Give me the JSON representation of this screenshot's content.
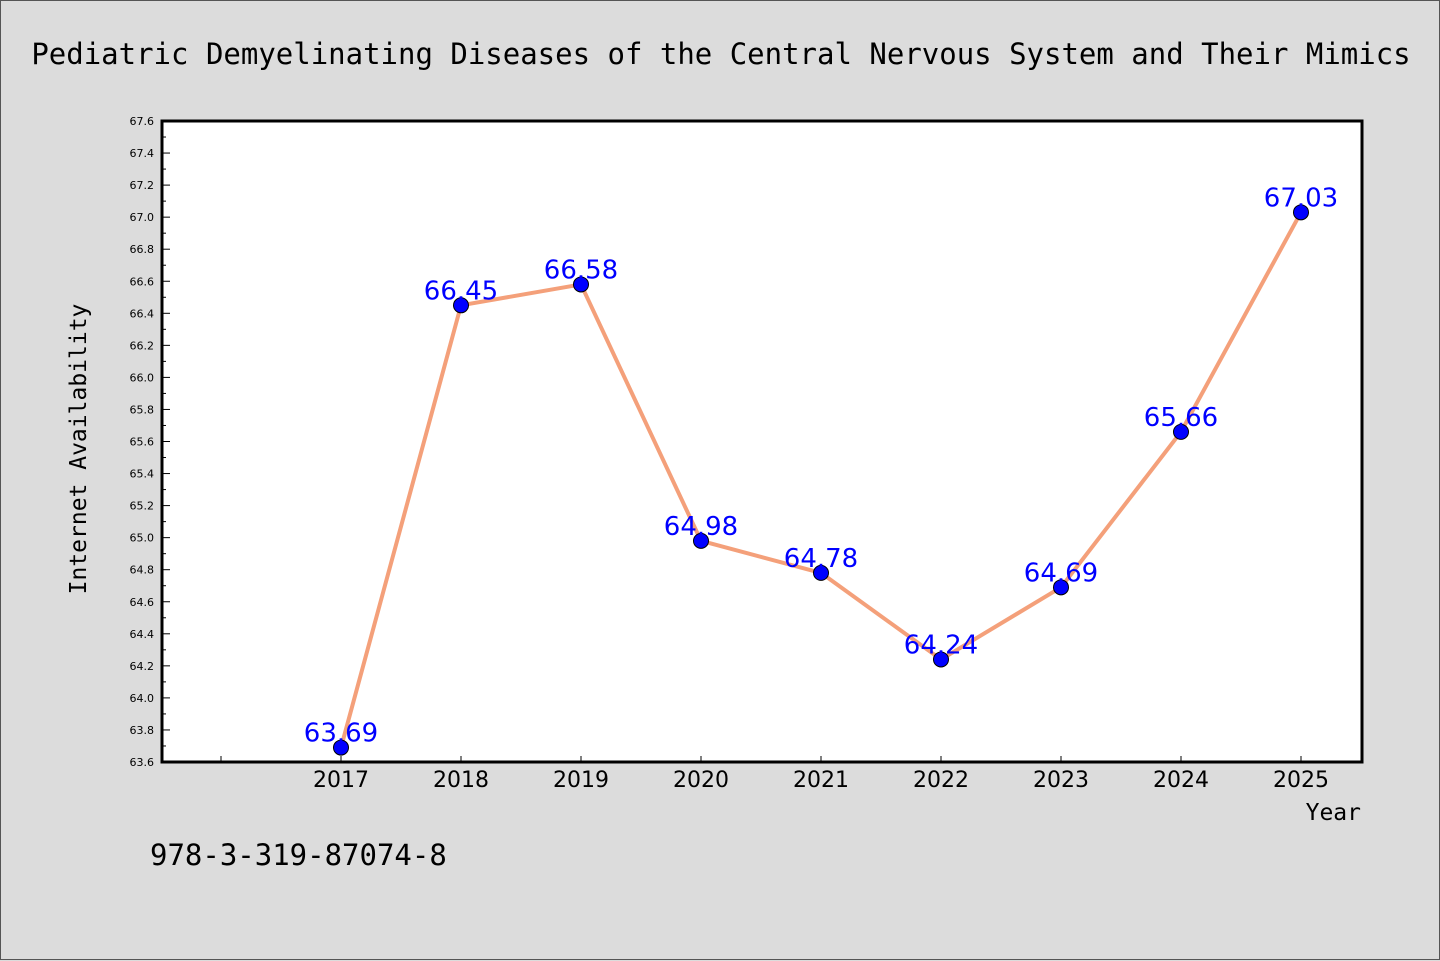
{
  "chart_data": {
    "type": "line",
    "title": "Pediatric Demyelinating Diseases of the Central Nervous System and Their Mimics",
    "xlabel": "Year",
    "ylabel": "Internet Availability",
    "categories": [
      "2017",
      "2018",
      "2019",
      "2020",
      "2021",
      "2022",
      "2023",
      "2024",
      "2025"
    ],
    "series": [
      {
        "values": [
          63.69,
          66.45,
          66.58,
          64.98,
          64.78,
          64.24,
          64.69,
          65.66,
          67.03
        ],
        "line_color": "#f4a07a",
        "marker_color": "#0000ff"
      }
    ],
    "data_labels": [
      "63.69",
      "66.45",
      "66.58",
      "64.98",
      "64.78",
      "64.24",
      "64.69",
      "65.66",
      "67.03"
    ],
    "label_color": "#0000ff",
    "ylim": [
      63.6,
      67.6
    ],
    "ytick_step": 0.2,
    "grid": false,
    "legend": "none"
  },
  "footer": {
    "isbn": "978-3-319-87074-8"
  },
  "colors": {
    "background": "#dcdcdc",
    "plot_background": "#ffffff"
  }
}
